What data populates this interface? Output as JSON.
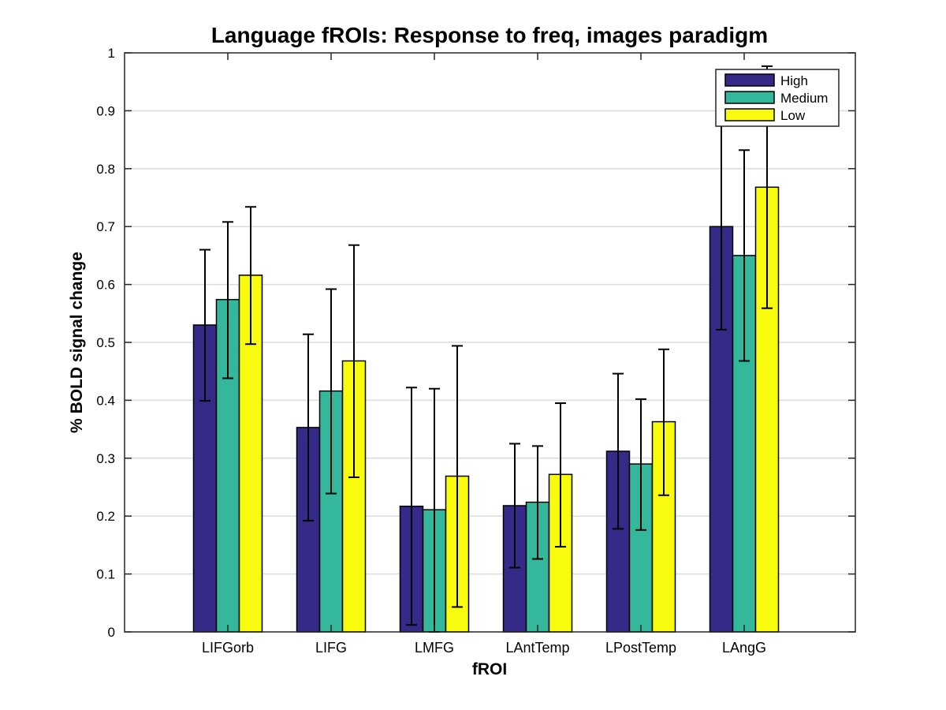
{
  "chart_data": {
    "type": "bar",
    "title": "Language fROIs: Response to freq, images paradigm",
    "xlabel": "fROI",
    "ylabel": "% BOLD signal change",
    "ylim": [
      0,
      1
    ],
    "yticks": [
      0,
      0.1,
      0.2,
      0.3,
      0.4,
      0.5,
      0.6,
      0.7,
      0.8,
      0.9,
      1
    ],
    "ytick_labels": [
      "0",
      "0.1",
      "0.2",
      "0.3",
      "0.4",
      "0.5",
      "0.6",
      "0.7",
      "0.8",
      "0.9",
      "1"
    ],
    "grid": "horizontal",
    "legend_position": "top-right",
    "categories": [
      "LIFGorb",
      "LIFG",
      "LMFG",
      "LAntTemp",
      "LPostTemp",
      "LAngG"
    ],
    "series": [
      {
        "name": "High",
        "color": "#352a87",
        "values": [
          0.53,
          0.353,
          0.217,
          0.218,
          0.312,
          0.7
        ],
        "error_low": [
          0.399,
          0.192,
          0.012,
          0.111,
          0.178,
          0.522
        ],
        "error_high": [
          0.66,
          0.514,
          0.422,
          0.325,
          0.446,
          0.878
        ]
      },
      {
        "name": "Medium",
        "color": "#35b79b",
        "values": [
          0.574,
          0.416,
          0.211,
          0.224,
          0.29,
          0.65
        ],
        "error_low": [
          0.438,
          0.239,
          0.0,
          0.126,
          0.176,
          0.468
        ],
        "error_high": [
          0.708,
          0.592,
          0.42,
          0.321,
          0.402,
          0.832
        ]
      },
      {
        "name": "Low",
        "color": "#f9fb0e",
        "values": [
          0.616,
          0.468,
          0.269,
          0.272,
          0.363,
          0.768
        ],
        "error_low": [
          0.497,
          0.267,
          0.043,
          0.147,
          0.236,
          0.559
        ],
        "error_high": [
          0.734,
          0.668,
          0.494,
          0.395,
          0.488,
          0.977
        ]
      }
    ]
  }
}
